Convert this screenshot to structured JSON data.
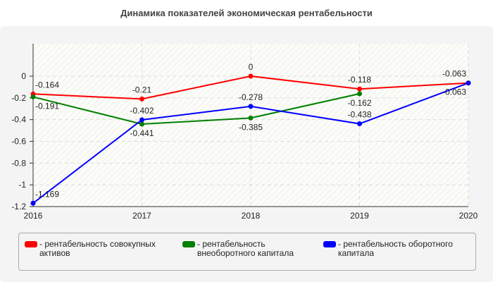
{
  "chart_data": {
    "type": "line",
    "title": "Динамика показателей экономическая рентабельности",
    "categories": [
      "2016",
      "2017",
      "2018",
      "2019",
      "2020"
    ],
    "ylim": [
      -1.2,
      0.2
    ],
    "yticks": [
      0,
      -0.2,
      -0.4,
      -0.6,
      -0.8,
      -1,
      -1.2
    ],
    "grid": true,
    "legend_position": "bottom",
    "series": [
      {
        "name": "- рентабельность совокупных активов",
        "color": "#ff0000",
        "values": [
          -0.164,
          -0.21,
          0,
          -0.118,
          -0.063
        ]
      },
      {
        "name": "- рентабельность внеоборотного капитала",
        "color": "#008000",
        "values": [
          -0.191,
          -0.441,
          -0.385,
          -0.162,
          null
        ]
      },
      {
        "name": "- рентабельность оборотного капитала",
        "color": "#0000ff",
        "values": [
          -1.169,
          -0.402,
          -0.278,
          -0.438,
          -0.063
        ]
      }
    ]
  }
}
